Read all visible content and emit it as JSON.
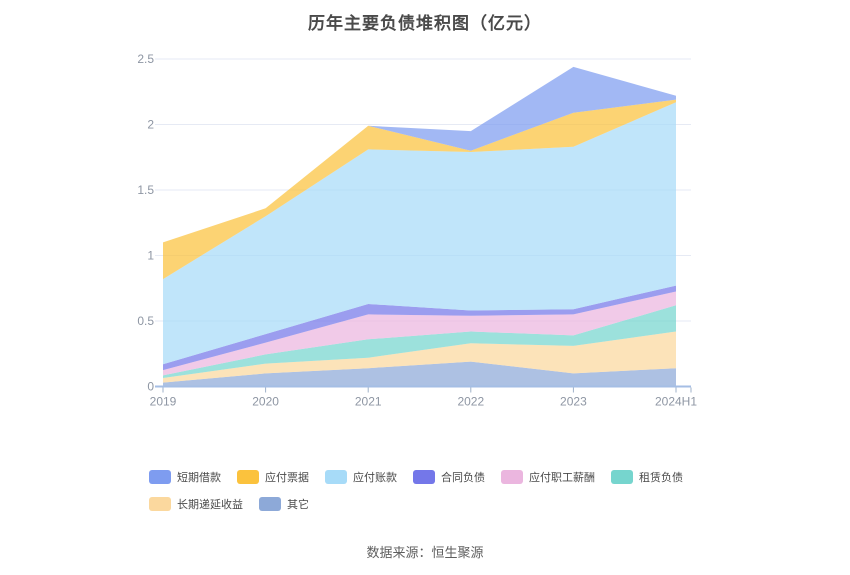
{
  "title": "历年主要负债堆积图（亿元）",
  "source": "数据来源：恒生聚源",
  "chart_data": {
    "type": "area",
    "stacked": true,
    "title": "历年主要负债堆积图（亿元）",
    "xlabel": "",
    "ylabel": "",
    "categories": [
      "2019",
      "2020",
      "2021",
      "2022",
      "2023",
      "2024H1"
    ],
    "ylim": [
      0,
      2.5
    ],
    "yticks": [
      0,
      0.5,
      1,
      1.5,
      2,
      2.5
    ],
    "ytick_labels": [
      "0",
      "0.5",
      "1",
      "1.5",
      "2",
      "2.5"
    ],
    "grid": true,
    "legend_position": "bottom-left",
    "colors": {
      "axis_line": "#a5bee4",
      "gridline": "#e6eaf4",
      "tick": "#9fb0c8",
      "axis_label": "#8e96a3"
    },
    "series": [
      {
        "name": "其它",
        "color": "#8DA9D8",
        "values": [
          0.03,
          0.1,
          0.14,
          0.19,
          0.1,
          0.14
        ]
      },
      {
        "name": "长期递延收益",
        "color": "#FBD89E",
        "values": [
          0.035,
          0.075,
          0.08,
          0.14,
          0.21,
          0.28
        ]
      },
      {
        "name": "租赁负债",
        "color": "#76D5CE",
        "values": [
          0.02,
          0.07,
          0.14,
          0.09,
          0.08,
          0.2
        ]
      },
      {
        "name": "应付职工薪酬",
        "color": "#EBB6DF",
        "values": [
          0.04,
          0.09,
          0.19,
          0.12,
          0.16,
          0.105
        ]
      },
      {
        "name": "合同负债",
        "color": "#7477E9",
        "values": [
          0.045,
          0.065,
          0.08,
          0.04,
          0.04,
          0.045
        ]
      },
      {
        "name": "应付账款",
        "color": "#A7DBF8",
        "values": [
          0.65,
          0.9,
          1.18,
          1.21,
          1.24,
          1.4
        ]
      },
      {
        "name": "应付票据",
        "color": "#FBC23D",
        "values": [
          0.28,
          0.06,
          0.18,
          0.01,
          0.26,
          0.02
        ]
      },
      {
        "name": "短期借款",
        "color": "#7E9CF0",
        "values": [
          0,
          0,
          0,
          0.15,
          0.35,
          0.03
        ]
      }
    ],
    "legend_order": [
      "短期借款",
      "应付票据",
      "应付账款",
      "合同负债",
      "应付职工薪酬",
      "租赁负债",
      "长期递延收益",
      "其它"
    ]
  }
}
